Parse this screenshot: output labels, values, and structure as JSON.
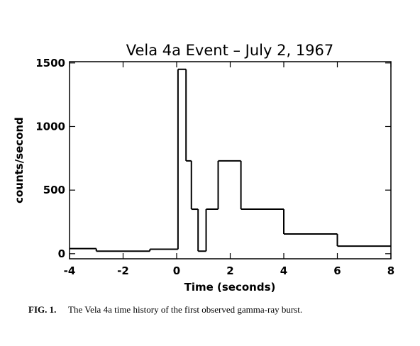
{
  "chart_data": {
    "type": "histogram",
    "title": "Vela 4a Event – July 2, 1967",
    "x_label": "Time (seconds)",
    "y_label": "counts/second",
    "bins": [
      -4,
      -3,
      -1,
      0.05,
      0.35,
      0.55,
      0.8,
      1.1,
      1.55,
      2.4,
      4,
      6,
      8
    ],
    "values": [
      40,
      20,
      35,
      1450,
      730,
      350,
      20,
      350,
      730,
      350,
      155,
      60
    ],
    "color": "#000000",
    "xlim": [
      -4,
      8
    ],
    "xticks": [
      -4,
      -2,
      0,
      2,
      4,
      6,
      8
    ],
    "ylim": [
      -40,
      1510
    ],
    "yticks": [
      0,
      500,
      1000,
      1500
    ]
  },
  "figure_label": "FIG. 1.",
  "caption": "The Vela 4a time history of the first observed gamma-ray burst."
}
